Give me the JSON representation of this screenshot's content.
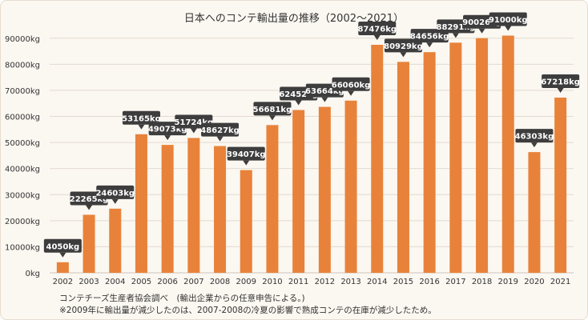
{
  "chart_data": {
    "type": "bar",
    "title": "日本へのコンテ輸出量の推移（2002〜2021）",
    "categories": [
      "2002",
      "2003",
      "2004",
      "2005",
      "2006",
      "2007",
      "2008",
      "2009",
      "2010",
      "2011",
      "2012",
      "2013",
      "2014",
      "2015",
      "2016",
      "2017",
      "2018",
      "2019",
      "2020",
      "2021"
    ],
    "values": [
      4050,
      22265,
      24603,
      53165,
      49073,
      51724,
      48627,
      39407,
      56681,
      62452,
      63664,
      66060,
      87476,
      80929,
      84656,
      88291,
      90026,
      91000,
      46303,
      67218
    ],
    "data_labels": [
      "4050kg",
      "22265kg",
      "24603kg",
      "53165kg",
      "49073kg",
      "51724kg",
      "48627kg",
      "39407kg",
      "56681kg",
      "62452kg",
      "63664kg",
      "66060kg",
      "87476kg",
      "80929kg",
      "84656kg",
      "88291kg",
      "90026kg",
      "91000kg",
      "46303kg",
      "67218kg"
    ],
    "y_ticks": [
      0,
      10000,
      20000,
      30000,
      40000,
      50000,
      60000,
      70000,
      80000,
      90000
    ],
    "y_tick_labels": [
      "0kg",
      "10000kg",
      "20000kg",
      "30000kg",
      "40000kg",
      "50000kg",
      "60000kg",
      "70000kg",
      "80000kg",
      "90000kg"
    ],
    "ylim": [
      0,
      93000
    ],
    "grid": true,
    "bar_color": "#e8823a",
    "label_color": "#3d3d3d"
  },
  "notes": [
    "コンテチーズ生産者協会調べ　(輸出企業からの任意申告による。)",
    "※2009年に輸出量が減少したのは、2007-2008の冷夏の影響で熟成コンテの在庫が減少したため。"
  ]
}
